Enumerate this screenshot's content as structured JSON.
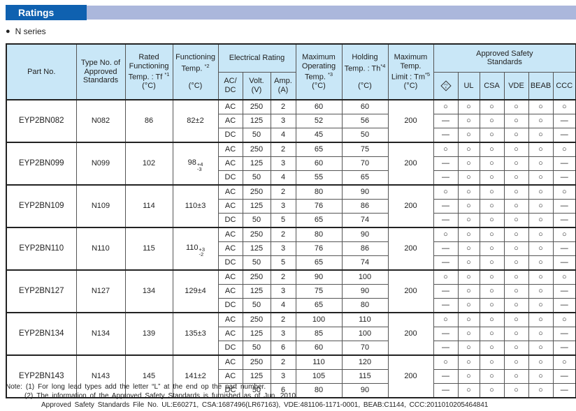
{
  "colors": {
    "banner_blue": "#0f61b0",
    "banner_bar": "#abb7dc",
    "header_bg": "#c9e7f7",
    "border_dark": "#222222",
    "border_light": "#555555",
    "text": "#222222"
  },
  "banner": {
    "title": "Ratings"
  },
  "series": {
    "bullet": "●",
    "label": "N series"
  },
  "table": {
    "header": {
      "part_no": "Part No.",
      "type_no": "Type No. of\nApproved\nStandards",
      "rated": "Rated\nFunctioning\nTemp. : Tf ^{*1}\n(°C)",
      "functioning": "Functioning\nTemp. ^{*2}\n\n(°C)",
      "electrical": "Electrical Rating",
      "acdc": "AC/\nDC",
      "volt": "Volt.\n(V)",
      "amp": "Amp.\n(A)",
      "max_operating": "Maximum\nOperating\nTemp. ^{*3}\n(°C)",
      "holding": "Holding\nTemp. : Th^{*4}\n\n(°C)",
      "max_limit": "Maximum\nTemp.\nLimit : Tm^{*5}\n(°C)",
      "approved": "Approved Safety\nStandards",
      "pse_mark": {
        "icon": "pse-diamond-mark",
        "ps": "PS",
        "e": "E"
      },
      "standards": [
        "UL",
        "CSA",
        "VDE",
        "BEAB",
        "CCC"
      ]
    },
    "symbols": {
      "approved": "○",
      "not_approved": "—"
    },
    "groups": [
      {
        "part_no": "EYP2BN082",
        "type_no": "N082",
        "rated_temp": "86",
        "functioning": {
          "main": "82±2"
        },
        "max_temp_limit": "200",
        "rows": [
          {
            "acdc": "AC",
            "volt": "250",
            "amp": "2",
            "max_operating": "60",
            "holding": "60",
            "safety": [
              "○",
              "○",
              "○",
              "○",
              "○",
              "○"
            ]
          },
          {
            "acdc": "AC",
            "volt": "125",
            "amp": "3",
            "max_operating": "52",
            "holding": "56",
            "safety": [
              "—",
              "○",
              "○",
              "○",
              "○",
              "—"
            ]
          },
          {
            "acdc": "DC",
            "volt": "50",
            "amp": "4",
            "max_operating": "45",
            "holding": "50",
            "safety": [
              "—",
              "○",
              "○",
              "○",
              "○",
              "—"
            ]
          }
        ]
      },
      {
        "part_no": "EYP2BN099",
        "type_no": "N099",
        "rated_temp": "102",
        "functioning": {
          "main": "98",
          "sup": "+4",
          "sub": "-3"
        },
        "max_temp_limit": "200",
        "rows": [
          {
            "acdc": "AC",
            "volt": "250",
            "amp": "2",
            "max_operating": "65",
            "holding": "75",
            "safety": [
              "○",
              "○",
              "○",
              "○",
              "○",
              "○"
            ]
          },
          {
            "acdc": "AC",
            "volt": "125",
            "amp": "3",
            "max_operating": "60",
            "holding": "70",
            "safety": [
              "—",
              "○",
              "○",
              "○",
              "○",
              "—"
            ]
          },
          {
            "acdc": "DC",
            "volt": "50",
            "amp": "4",
            "max_operating": "55",
            "holding": "65",
            "safety": [
              "—",
              "○",
              "○",
              "○",
              "○",
              "—"
            ]
          }
        ]
      },
      {
        "part_no": "EYP2BN109",
        "type_no": "N109",
        "rated_temp": "114",
        "functioning": {
          "main": "110±3"
        },
        "max_temp_limit": "200",
        "rows": [
          {
            "acdc": "AC",
            "volt": "250",
            "amp": "2",
            "max_operating": "80",
            "holding": "90",
            "safety": [
              "○",
              "○",
              "○",
              "○",
              "○",
              "○"
            ]
          },
          {
            "acdc": "AC",
            "volt": "125",
            "amp": "3",
            "max_operating": "76",
            "holding": "86",
            "safety": [
              "—",
              "○",
              "○",
              "○",
              "○",
              "—"
            ]
          },
          {
            "acdc": "DC",
            "volt": "50",
            "amp": "5",
            "max_operating": "65",
            "holding": "74",
            "safety": [
              "—",
              "○",
              "○",
              "○",
              "○",
              "—"
            ]
          }
        ]
      },
      {
        "part_no": "EYP2BN110",
        "type_no": "N110",
        "rated_temp": "115",
        "functioning": {
          "main": "110",
          "sup": "+3",
          "sub": "-2"
        },
        "max_temp_limit": "200",
        "rows": [
          {
            "acdc": "AC",
            "volt": "250",
            "amp": "2",
            "max_operating": "80",
            "holding": "90",
            "safety": [
              "○",
              "○",
              "○",
              "○",
              "○",
              "○"
            ]
          },
          {
            "acdc": "AC",
            "volt": "125",
            "amp": "3",
            "max_operating": "76",
            "holding": "86",
            "safety": [
              "—",
              "○",
              "○",
              "○",
              "○",
              "—"
            ]
          },
          {
            "acdc": "DC",
            "volt": "50",
            "amp": "5",
            "max_operating": "65",
            "holding": "74",
            "safety": [
              "—",
              "○",
              "○",
              "○",
              "○",
              "—"
            ]
          }
        ]
      },
      {
        "part_no": "EYP2BN127",
        "type_no": "N127",
        "rated_temp": "134",
        "functioning": {
          "main": "129±4"
        },
        "max_temp_limit": "200",
        "rows": [
          {
            "acdc": "AC",
            "volt": "250",
            "amp": "2",
            "max_operating": "90",
            "holding": "100",
            "safety": [
              "○",
              "○",
              "○",
              "○",
              "○",
              "○"
            ]
          },
          {
            "acdc": "AC",
            "volt": "125",
            "amp": "3",
            "max_operating": "75",
            "holding": "90",
            "safety": [
              "—",
              "○",
              "○",
              "○",
              "○",
              "—"
            ]
          },
          {
            "acdc": "DC",
            "volt": "50",
            "amp": "4",
            "max_operating": "65",
            "holding": "80",
            "safety": [
              "—",
              "○",
              "○",
              "○",
              "○",
              "—"
            ]
          }
        ]
      },
      {
        "part_no": "EYP2BN134",
        "type_no": "N134",
        "rated_temp": "139",
        "functioning": {
          "main": "135±3"
        },
        "max_temp_limit": "200",
        "rows": [
          {
            "acdc": "AC",
            "volt": "250",
            "amp": "2",
            "max_operating": "100",
            "holding": "110",
            "safety": [
              "○",
              "○",
              "○",
              "○",
              "○",
              "○"
            ]
          },
          {
            "acdc": "AC",
            "volt": "125",
            "amp": "3",
            "max_operating": "85",
            "holding": "100",
            "safety": [
              "—",
              "○",
              "○",
              "○",
              "○",
              "—"
            ]
          },
          {
            "acdc": "DC",
            "volt": "50",
            "amp": "6",
            "max_operating": "60",
            "holding": "70",
            "safety": [
              "—",
              "○",
              "○",
              "○",
              "○",
              "—"
            ]
          }
        ]
      },
      {
        "part_no": "EYP2BN143",
        "type_no": "N143",
        "rated_temp": "145",
        "functioning": {
          "main": "141±2"
        },
        "max_temp_limit": "200",
        "rows": [
          {
            "acdc": "AC",
            "volt": "250",
            "amp": "2",
            "max_operating": "110",
            "holding": "120",
            "safety": [
              "○",
              "○",
              "○",
              "○",
              "○",
              "○"
            ]
          },
          {
            "acdc": "AC",
            "volt": "125",
            "amp": "3",
            "max_operating": "105",
            "holding": "115",
            "safety": [
              "—",
              "○",
              "○",
              "○",
              "○",
              "—"
            ]
          },
          {
            "acdc": "DC",
            "volt": "50",
            "amp": "6",
            "max_operating": "80",
            "holding": "90",
            "safety": [
              "—",
              "○",
              "○",
              "○",
              "○",
              "—"
            ]
          }
        ]
      }
    ]
  },
  "notes": {
    "label": "Note:",
    "items": [
      {
        "num": "(1)",
        "lines": [
          "For long lead types add the letter “L” at the end op the part number."
        ]
      },
      {
        "num": "(2)",
        "lines": [
          "The information of the Approved Safety Standards is furnished as of Jun. 2010.",
          "Approved Safety Standards File No. UL:E60271, CSA:1687496(LR67163), VDE:481106-1171-0001, BEAB:C1144, CCC:2011010205464841"
        ]
      }
    ]
  }
}
